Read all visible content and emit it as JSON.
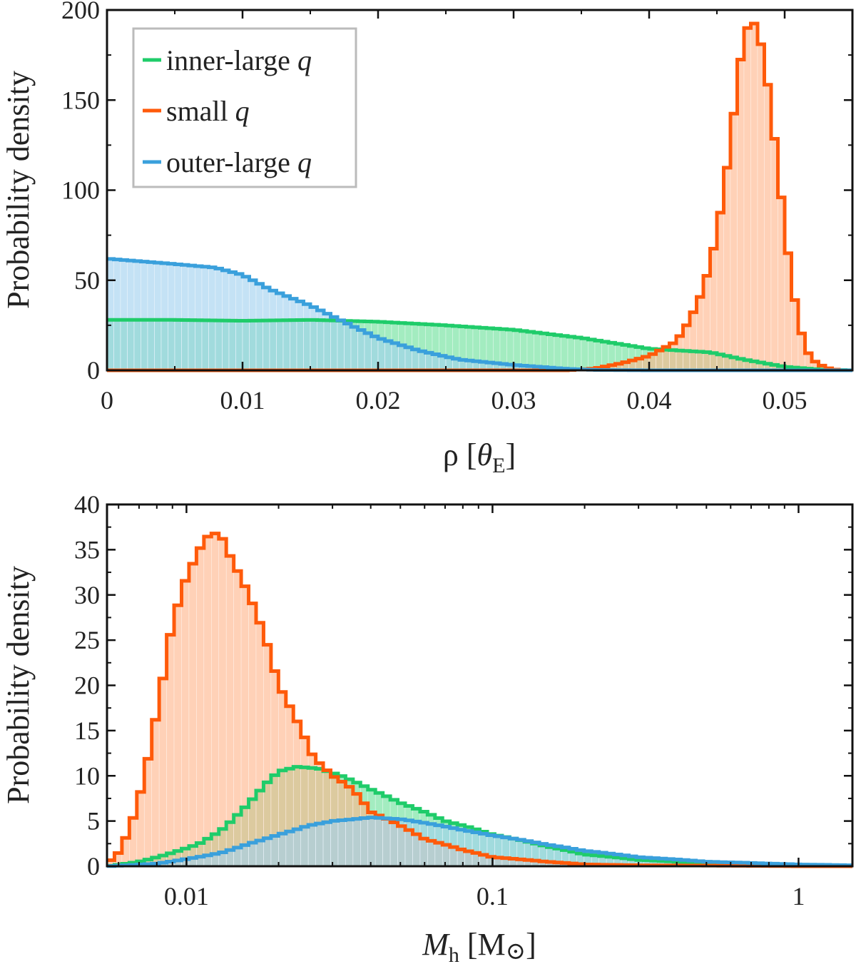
{
  "chart_data": [
    {
      "type": "histogram",
      "xlabel": "ρ [θE]",
      "xlabel_parts": {
        "main": "ρ [",
        "var": "θ",
        "sub": "E",
        "end": "]"
      },
      "ylabel": "Probability density",
      "xlim": [
        0,
        0.055
      ],
      "ylim": [
        0,
        200
      ],
      "xscale": "linear",
      "xticks": [
        0,
        0.01,
        0.02,
        0.03,
        0.04,
        0.05
      ],
      "xtick_labels": [
        "0",
        "0.01",
        "0.02",
        "0.03",
        "0.04",
        "0.05"
      ],
      "yticks": [
        0,
        50,
        100,
        150,
        200
      ],
      "ytick_labels": [
        "0",
        "50",
        "100",
        "150",
        "200"
      ],
      "legend_position": "top-left",
      "series": [
        {
          "name": "inner-large q",
          "name_parts": {
            "text": "inner-large ",
            "var": "q"
          },
          "color": "#1fcc6a",
          "fill": "#6be09a",
          "bin_edges": [
            0,
            0.055
          ],
          "points": [
            [
              0,
              28
            ],
            [
              0.005,
              28
            ],
            [
              0.01,
              27.5
            ],
            [
              0.015,
              28
            ],
            [
              0.02,
              27
            ],
            [
              0.025,
              25
            ],
            [
              0.03,
              22.5
            ],
            [
              0.035,
              18
            ],
            [
              0.04,
              12
            ],
            [
              0.0445,
              10
            ],
            [
              0.047,
              6
            ],
            [
              0.05,
              2
            ],
            [
              0.0525,
              0.5
            ],
            [
              0.055,
              0
            ]
          ]
        },
        {
          "name": "small q",
          "name_parts": {
            "text": "small ",
            "var": "q"
          },
          "color": "#ff5a0a",
          "fill": "#ffb48a",
          "bin_edges": [
            0,
            0.055
          ],
          "points": [
            [
              0,
              0
            ],
            [
              0.034,
              0
            ],
            [
              0.036,
              1
            ],
            [
              0.038,
              4
            ],
            [
              0.04,
              8
            ],
            [
              0.042,
              16
            ],
            [
              0.043,
              28
            ],
            [
              0.044,
              45
            ],
            [
              0.045,
              75
            ],
            [
              0.046,
              125
            ],
            [
              0.0465,
              160
            ],
            [
              0.047,
              185
            ],
            [
              0.0475,
              195
            ],
            [
              0.048,
              190
            ],
            [
              0.0485,
              172
            ],
            [
              0.049,
              145
            ],
            [
              0.0495,
              112
            ],
            [
              0.05,
              80
            ],
            [
              0.0505,
              50
            ],
            [
              0.051,
              28
            ],
            [
              0.0515,
              13
            ],
            [
              0.052,
              6
            ],
            [
              0.053,
              1.5
            ],
            [
              0.054,
              0
            ]
          ]
        },
        {
          "name": "outer-large q",
          "name_parts": {
            "text": "outer-large ",
            "var": "q"
          },
          "color": "#3aa0dc",
          "fill": "#a0d0ef",
          "bin_edges": [
            0,
            0.055
          ],
          "points": [
            [
              0,
              62
            ],
            [
              0.005,
              59
            ],
            [
              0.008,
              57
            ],
            [
              0.01,
              53
            ],
            [
              0.012,
              45
            ],
            [
              0.015,
              36
            ],
            [
              0.018,
              25
            ],
            [
              0.02,
              18
            ],
            [
              0.023,
              11
            ],
            [
              0.026,
              6
            ],
            [
              0.03,
              3
            ],
            [
              0.034,
              0.8
            ],
            [
              0.036,
              0.2
            ],
            [
              0.04,
              0
            ],
            [
              0.055,
              0
            ]
          ]
        }
      ]
    },
    {
      "type": "histogram",
      "xlabel": "Mh [M⊙]",
      "xlabel_parts": {
        "var": "M",
        "sub": "h",
        "unit_start": " [M",
        "unit_sym": "⊙",
        "unit_end": "]"
      },
      "ylabel": "Probability density",
      "xlim": [
        0.0055,
        1.5
      ],
      "ylim": [
        0,
        40
      ],
      "xscale": "log",
      "xticks": [
        0.01,
        0.1,
        1
      ],
      "xtick_labels": [
        "0.01",
        "0.1",
        "1"
      ],
      "yticks": [
        0,
        5,
        10,
        15,
        20,
        25,
        30,
        35,
        40
      ],
      "ytick_labels": [
        "0",
        "5",
        "10",
        "15",
        "20",
        "25",
        "30",
        "35",
        "40"
      ],
      "series": [
        {
          "name": "inner-large q",
          "color": "#1fcc6a",
          "fill": "#6be09a",
          "bin_edges": [
            0.0055,
            1.5
          ],
          "points": [
            [
              0.0055,
              0
            ],
            [
              0.007,
              0.5
            ],
            [
              0.009,
              1.5
            ],
            [
              0.011,
              2.5
            ],
            [
              0.013,
              4
            ],
            [
              0.015,
              6
            ],
            [
              0.018,
              9
            ],
            [
              0.02,
              10.5
            ],
            [
              0.023,
              11
            ],
            [
              0.027,
              10.8
            ],
            [
              0.032,
              10
            ],
            [
              0.04,
              8.5
            ],
            [
              0.05,
              7
            ],
            [
              0.07,
              5
            ],
            [
              0.1,
              3.5
            ],
            [
              0.15,
              2.2
            ],
            [
              0.2,
              1.3
            ],
            [
              0.3,
              0.7
            ],
            [
              0.5,
              0.3
            ],
            [
              1,
              0.1
            ],
            [
              1.5,
              0
            ]
          ]
        },
        {
          "name": "small q",
          "color": "#ff5a0a",
          "fill": "#ffb48a",
          "bin_edges": [
            0.0055,
            1.5
          ],
          "points": [
            [
              0.0055,
              0.3
            ],
            [
              0.006,
              1.5
            ],
            [
              0.0065,
              4
            ],
            [
              0.007,
              7.5
            ],
            [
              0.0075,
              12
            ],
            [
              0.008,
              17
            ],
            [
              0.009,
              27
            ],
            [
              0.01,
              32
            ],
            [
              0.011,
              35
            ],
            [
              0.012,
              37
            ],
            [
              0.013,
              36.5
            ],
            [
              0.014,
              34
            ],
            [
              0.016,
              30
            ],
            [
              0.018,
              25.5
            ],
            [
              0.02,
              20
            ],
            [
              0.023,
              16
            ],
            [
              0.026,
              12
            ],
            [
              0.03,
              10
            ],
            [
              0.035,
              8.5
            ],
            [
              0.04,
              6
            ],
            [
              0.05,
              4.5
            ],
            [
              0.06,
              3
            ],
            [
              0.08,
              1.8
            ],
            [
              0.1,
              1
            ],
            [
              0.15,
              0.5
            ],
            [
              0.2,
              0.2
            ],
            [
              0.3,
              0.1
            ],
            [
              1,
              0
            ],
            [
              1.5,
              0
            ]
          ]
        },
        {
          "name": "outer-large q",
          "color": "#3aa0dc",
          "fill": "#a0d0ef",
          "bin_edges": [
            0.0055,
            1.5
          ],
          "points": [
            [
              0.0055,
              0
            ],
            [
              0.008,
              0.3
            ],
            [
              0.01,
              0.8
            ],
            [
              0.013,
              1.5
            ],
            [
              0.016,
              2.5
            ],
            [
              0.02,
              3.5
            ],
            [
              0.025,
              4.5
            ],
            [
              0.03,
              5
            ],
            [
              0.04,
              5.4
            ],
            [
              0.05,
              5.2
            ],
            [
              0.06,
              4.8
            ],
            [
              0.08,
              4
            ],
            [
              0.1,
              3.4
            ],
            [
              0.15,
              2.4
            ],
            [
              0.2,
              1.7
            ],
            [
              0.3,
              1
            ],
            [
              0.5,
              0.5
            ],
            [
              0.8,
              0.3
            ],
            [
              1,
              0.2
            ],
            [
              1.5,
              0.1
            ]
          ]
        }
      ]
    }
  ]
}
